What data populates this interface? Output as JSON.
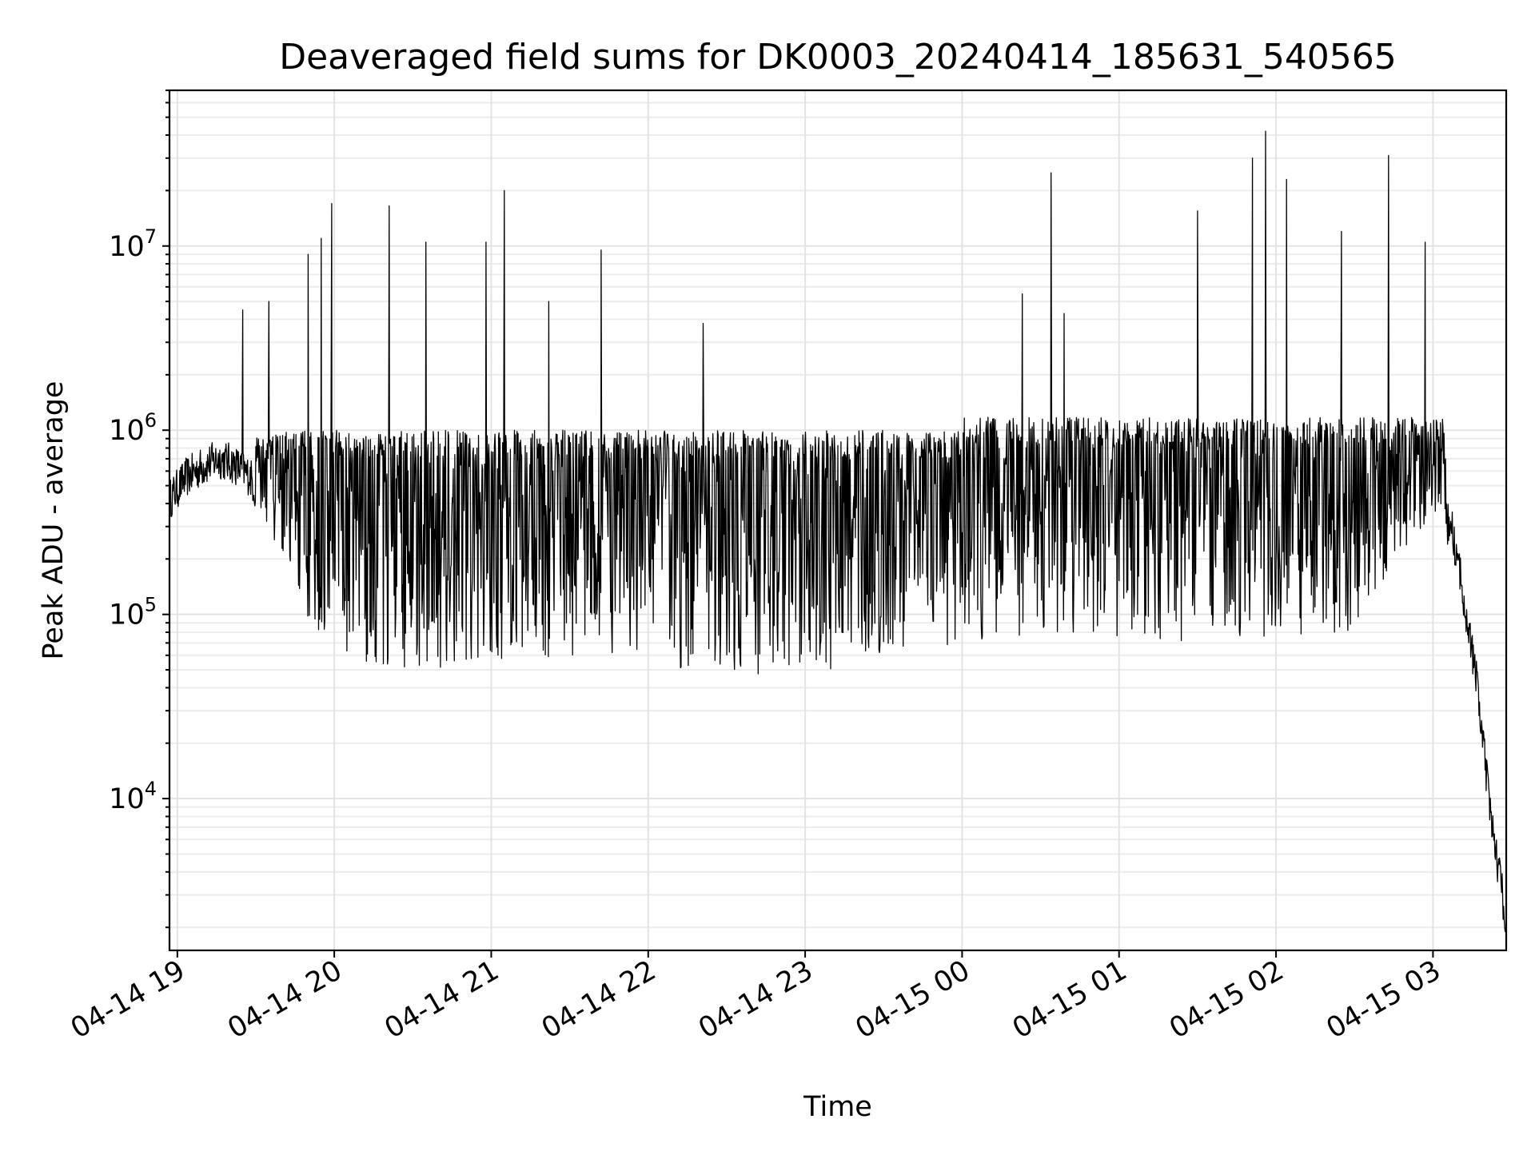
{
  "chart_data": {
    "type": "line",
    "title": "Deaveraged field sums for DK0003_20240414_185631_540565",
    "xlabel": "Time",
    "ylabel": "Peak ADU - average",
    "x_range": [
      "2024-04-14 18:57",
      "2024-04-15 03:28"
    ],
    "x_ticks": [
      "04-14 19",
      "04-14 20",
      "04-14 21",
      "04-14 22",
      "04-14 23",
      "04-15 00",
      "04-15 01",
      "04-15 02",
      "04-15 03"
    ],
    "y_scale": "log",
    "y_range": [
      1500,
      70000000
    ],
    "y_ticks": [
      {
        "base": "10",
        "exp": "4",
        "value": 10000
      },
      {
        "base": "10",
        "exp": "5",
        "value": 100000
      },
      {
        "base": "10",
        "exp": "6",
        "value": 1000000
      },
      {
        "base": "10",
        "exp": "7",
        "value": 10000000
      }
    ],
    "grid": true,
    "line_color": "#000000",
    "series": [
      {
        "points": [
          [
            "2024-04-14 18:57",
            420000
          ],
          [
            "2024-04-14 19:03",
            550000
          ],
          [
            "2024-04-14 19:10",
            640000
          ],
          [
            "2024-04-14 19:16",
            700000
          ],
          [
            "2024-04-14 19:22",
            650000
          ],
          [
            "2024-04-14 19:28",
            560000
          ],
          [
            "2024-04-14 19:34",
            300000
          ],
          [
            "2024-04-14 19:40",
            200000
          ],
          [
            "2024-04-14 19:46",
            130000
          ],
          [
            "2024-04-14 19:52",
            80000
          ],
          [
            "2024-04-14 19:58",
            70000
          ],
          [
            "2024-04-14 20:10",
            55000
          ],
          [
            "2024-04-14 20:30",
            50000
          ],
          [
            "2024-04-14 21:00",
            55000
          ],
          [
            "2024-04-14 21:30",
            60000
          ],
          [
            "2024-04-14 22:00",
            50000
          ],
          [
            "2024-04-14 22:30",
            48000
          ],
          [
            "2024-04-14 23:00",
            45000
          ],
          [
            "2024-04-14 23:30",
            60000
          ],
          [
            "2024-04-15 00:00",
            70000
          ],
          [
            "2024-04-15 00:30",
            80000
          ],
          [
            "2024-04-15 01:00",
            75000
          ],
          [
            "2024-04-15 01:30",
            70000
          ],
          [
            "2024-04-15 02:00",
            75000
          ],
          [
            "2024-04-15 02:30",
            80000
          ],
          [
            "2024-04-15 03:00",
            350000
          ],
          [
            "2024-04-15 03:07",
            300000
          ],
          [
            "2024-04-15 03:12",
            120000
          ],
          [
            "2024-04-15 03:17",
            40000
          ],
          [
            "2024-04-15 03:22",
            8000
          ],
          [
            "2024-04-15 03:28",
            2200
          ]
        ],
        "spikes": [
          [
            "2024-04-14 19:25",
            4500000
          ],
          [
            "2024-04-14 19:35",
            5000000
          ],
          [
            "2024-04-14 19:50",
            9000000
          ],
          [
            "2024-04-14 19:55",
            11000000
          ],
          [
            "2024-04-14 19:59",
            17000000
          ],
          [
            "2024-04-14 20:21",
            16500000
          ],
          [
            "2024-04-14 20:35",
            10500000
          ],
          [
            "2024-04-14 20:58",
            10500000
          ],
          [
            "2024-04-14 21:05",
            20000000
          ],
          [
            "2024-04-14 21:22",
            5000000
          ],
          [
            "2024-04-14 21:42",
            9500000
          ],
          [
            "2024-04-14 22:21",
            3800000
          ],
          [
            "2024-04-15 00:23",
            5500000
          ],
          [
            "2024-04-15 00:34",
            25000000
          ],
          [
            "2024-04-15 00:39",
            4300000
          ],
          [
            "2024-04-15 01:30",
            15500000
          ],
          [
            "2024-04-15 01:51",
            30000000
          ],
          [
            "2024-04-15 01:56",
            42000000
          ],
          [
            "2024-04-15 02:04",
            23000000
          ],
          [
            "2024-04-15 02:25",
            12000000
          ],
          [
            "2024-04-15 02:43",
            31000000
          ],
          [
            "2024-04-15 02:57",
            10500000
          ]
        ]
      }
    ]
  }
}
